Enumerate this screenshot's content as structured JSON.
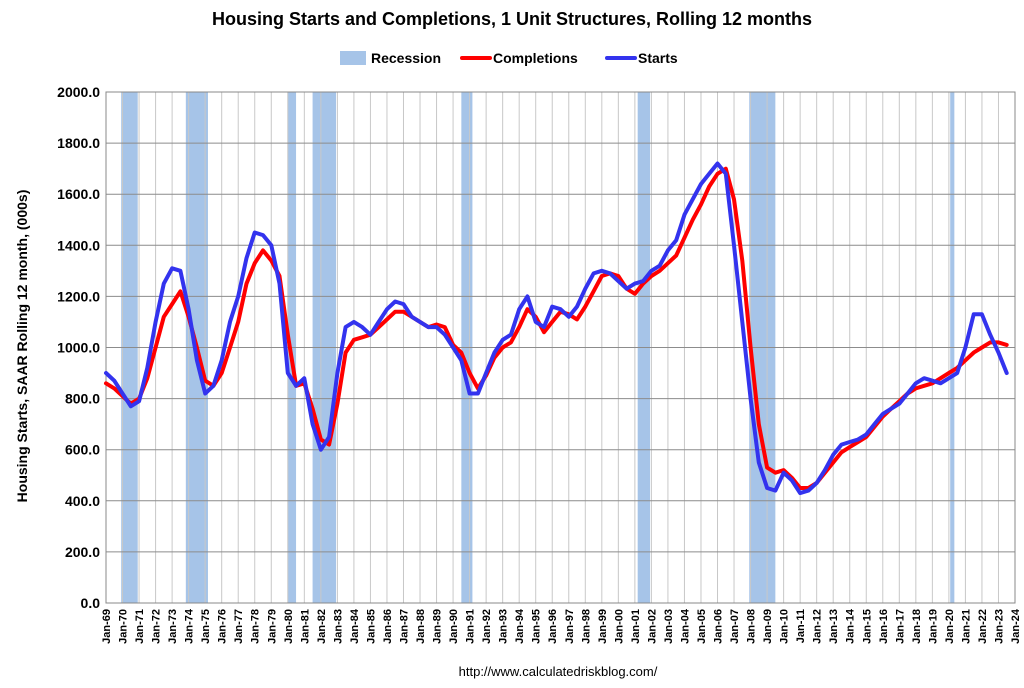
{
  "chart_data": {
    "type": "line",
    "title": "Housing Starts and Completions, 1 Unit Structures, Rolling 12 months",
    "ylabel": "Housing Starts, SAAR Rolling 12 month, (000s)",
    "xlabel": "",
    "source": "http://www.calculatedriskblog.com/",
    "ylim": [
      0,
      2000
    ],
    "yticks": [
      "0.0",
      "200.0",
      "400.0",
      "600.0",
      "800.0",
      "1000.0",
      "1200.0",
      "1400.0",
      "1600.0",
      "1800.0",
      "2000.0"
    ],
    "xticks": [
      "Jan-69",
      "Jan-70",
      "Jan-71",
      "Jan-72",
      "Jan-73",
      "Jan-74",
      "Jan-75",
      "Jan-76",
      "Jan-77",
      "Jan-78",
      "Jan-79",
      "Jan-80",
      "Jan-81",
      "Jan-82",
      "Jan-83",
      "Jan-84",
      "Jan-85",
      "Jan-86",
      "Jan-87",
      "Jan-88",
      "Jan-89",
      "Jan-90",
      "Jan-91",
      "Jan-92",
      "Jan-93",
      "Jan-94",
      "Jan-95",
      "Jan-96",
      "Jan-97",
      "Jan-98",
      "Jan-99",
      "Jan-00",
      "Jan-01",
      "Jan-02",
      "Jan-03",
      "Jan-04",
      "Jan-05",
      "Jan-06",
      "Jan-07",
      "Jan-08",
      "Jan-09",
      "Jan-10",
      "Jan-11",
      "Jan-12",
      "Jan-13",
      "Jan-14",
      "Jan-15",
      "Jan-16",
      "Jan-17",
      "Jan-18",
      "Jan-19",
      "Jan-20",
      "Jan-21",
      "Jan-22",
      "Jan-23",
      "Jan-24"
    ],
    "xrange": [
      1969.0,
      2024.0
    ],
    "grid": true,
    "legend_position": "top",
    "legend": [
      {
        "name": "Recession",
        "color": "#a6c4e8",
        "kind": "band"
      },
      {
        "name": "Completions",
        "color": "#ff0000",
        "kind": "line"
      },
      {
        "name": "Starts",
        "color": "#3333ee",
        "kind": "line"
      }
    ],
    "recessions": [
      [
        1969.92,
        1970.92
      ],
      [
        1973.83,
        1975.17
      ],
      [
        1980.0,
        1980.5
      ],
      [
        1981.5,
        1982.92
      ],
      [
        1990.5,
        1991.17
      ],
      [
        2001.17,
        2001.92
      ],
      [
        2007.92,
        2009.5
      ],
      [
        2020.08,
        2020.33
      ]
    ],
    "series": [
      {
        "name": "Starts",
        "color": "#3333ee",
        "x": [
          1969.0,
          1969.5,
          1970.0,
          1970.5,
          1971.0,
          1971.5,
          1972.0,
          1972.5,
          1973.0,
          1973.5,
          1974.0,
          1974.5,
          1975.0,
          1975.5,
          1976.0,
          1976.5,
          1977.0,
          1977.5,
          1978.0,
          1978.5,
          1979.0,
          1979.5,
          1980.0,
          1980.5,
          1981.0,
          1981.5,
          1982.0,
          1982.5,
          1983.0,
          1983.5,
          1984.0,
          1984.5,
          1985.0,
          1985.5,
          1986.0,
          1986.5,
          1987.0,
          1987.5,
          1988.0,
          1988.5,
          1989.0,
          1989.5,
          1990.0,
          1990.5,
          1991.0,
          1991.5,
          1992.0,
          1992.5,
          1993.0,
          1993.5,
          1994.0,
          1994.5,
          1995.0,
          1995.5,
          1996.0,
          1996.5,
          1997.0,
          1997.5,
          1998.0,
          1998.5,
          1999.0,
          1999.5,
          2000.0,
          2000.5,
          2001.0,
          2001.5,
          2002.0,
          2002.5,
          2003.0,
          2003.5,
          2004.0,
          2004.5,
          2005.0,
          2005.5,
          2006.0,
          2006.5,
          2007.0,
          2007.5,
          2008.0,
          2008.5,
          2009.0,
          2009.5,
          2010.0,
          2010.5,
          2011.0,
          2011.5,
          2012.0,
          2012.5,
          2013.0,
          2013.5,
          2014.0,
          2014.5,
          2015.0,
          2015.5,
          2016.0,
          2016.5,
          2017.0,
          2017.5,
          2018.0,
          2018.5,
          2019.0,
          2019.5,
          2020.0,
          2020.5,
          2021.0,
          2021.5,
          2022.0,
          2022.5,
          2023.0,
          2023.5
        ],
        "values": [
          900,
          870,
          820,
          770,
          790,
          920,
          1100,
          1250,
          1310,
          1300,
          1150,
          950,
          820,
          850,
          950,
          1100,
          1200,
          1350,
          1450,
          1440,
          1400,
          1250,
          900,
          850,
          880,
          700,
          600,
          650,
          900,
          1080,
          1100,
          1080,
          1050,
          1100,
          1150,
          1180,
          1170,
          1120,
          1100,
          1080,
          1080,
          1050,
          1000,
          950,
          820,
          820,
          900,
          980,
          1030,
          1050,
          1150,
          1200,
          1100,
          1080,
          1160,
          1150,
          1120,
          1160,
          1230,
          1290,
          1300,
          1290,
          1260,
          1230,
          1250,
          1260,
          1300,
          1320,
          1380,
          1420,
          1520,
          1580,
          1640,
          1680,
          1720,
          1680,
          1400,
          1100,
          800,
          550,
          450,
          440,
          510,
          480,
          430,
          440,
          470,
          520,
          580,
          620,
          630,
          640,
          660,
          700,
          740,
          760,
          780,
          820,
          860,
          880,
          870,
          860,
          880,
          900,
          1000,
          1130,
          1130,
          1050,
          980,
          900
        ]
      },
      {
        "name": "Completions",
        "color": "#ff0000",
        "x": [
          1969.0,
          1969.5,
          1970.0,
          1970.5,
          1971.0,
          1971.5,
          1972.0,
          1972.5,
          1973.0,
          1973.5,
          1974.0,
          1974.5,
          1975.0,
          1975.5,
          1976.0,
          1976.5,
          1977.0,
          1977.5,
          1978.0,
          1978.5,
          1979.0,
          1979.5,
          1980.0,
          1980.5,
          1981.0,
          1981.5,
          1982.0,
          1982.5,
          1983.0,
          1983.5,
          1984.0,
          1984.5,
          1985.0,
          1985.5,
          1986.0,
          1986.5,
          1987.0,
          1987.5,
          1988.0,
          1988.5,
          1989.0,
          1989.5,
          1990.0,
          1990.5,
          1991.0,
          1991.5,
          1992.0,
          1992.5,
          1993.0,
          1993.5,
          1994.0,
          1994.5,
          1995.0,
          1995.5,
          1996.0,
          1996.5,
          1997.0,
          1997.5,
          1998.0,
          1998.5,
          1999.0,
          1999.5,
          2000.0,
          2000.5,
          2001.0,
          2001.5,
          2002.0,
          2002.5,
          2003.0,
          2003.5,
          2004.0,
          2004.5,
          2005.0,
          2005.5,
          2006.0,
          2006.5,
          2007.0,
          2007.5,
          2008.0,
          2008.5,
          2009.0,
          2009.5,
          2010.0,
          2010.5,
          2011.0,
          2011.5,
          2012.0,
          2012.5,
          2013.0,
          2013.5,
          2014.0,
          2014.5,
          2015.0,
          2015.5,
          2016.0,
          2016.5,
          2017.0,
          2017.5,
          2018.0,
          2018.5,
          2019.0,
          2019.5,
          2020.0,
          2020.5,
          2021.0,
          2021.5,
          2022.0,
          2022.5,
          2023.0,
          2023.5
        ],
        "values": [
          860,
          840,
          810,
          780,
          800,
          880,
          1000,
          1120,
          1170,
          1220,
          1120,
          1000,
          870,
          850,
          900,
          1000,
          1100,
          1250,
          1330,
          1380,
          1340,
          1280,
          1050,
          850,
          860,
          760,
          640,
          620,
          780,
          980,
          1030,
          1040,
          1050,
          1080,
          1110,
          1140,
          1140,
          1120,
          1100,
          1080,
          1090,
          1080,
          1010,
          980,
          900,
          840,
          890,
          960,
          1000,
          1020,
          1080,
          1150,
          1120,
          1060,
          1100,
          1140,
          1130,
          1110,
          1160,
          1220,
          1280,
          1290,
          1280,
          1230,
          1210,
          1250,
          1280,
          1300,
          1330,
          1360,
          1430,
          1500,
          1560,
          1630,
          1680,
          1700,
          1580,
          1340,
          1000,
          700,
          530,
          510,
          520,
          490,
          450,
          450,
          470,
          510,
          550,
          590,
          610,
          630,
          650,
          690,
          730,
          760,
          790,
          820,
          840,
          850,
          860,
          880,
          900,
          920,
          950,
          980,
          1000,
          1020,
          1020,
          1010
        ]
      }
    ]
  }
}
